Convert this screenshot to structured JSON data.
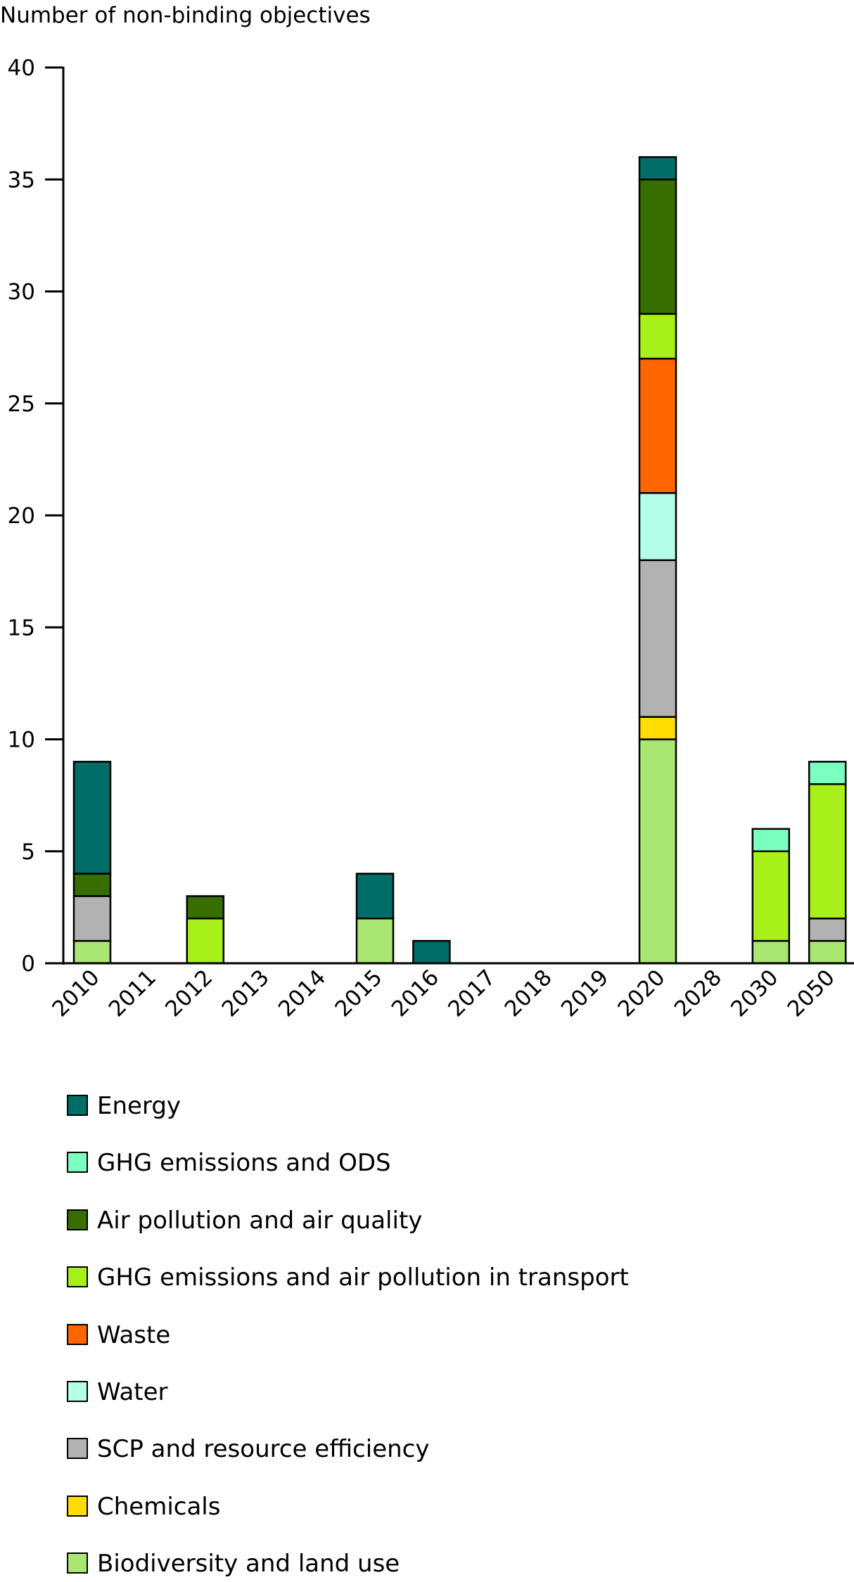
{
  "chart_data": {
    "type": "bar",
    "stacked": true,
    "title": "",
    "xlabel": "",
    "ylabel": "Number of non-binding objectives",
    "ylim": [
      0,
      40
    ],
    "yticks": [
      0,
      5,
      10,
      15,
      20,
      25,
      30,
      35,
      40
    ],
    "grid": false,
    "legend_position": "bottom",
    "categories": [
      "2010",
      "2011",
      "2012",
      "2013",
      "2014",
      "2015",
      "2016",
      "2017",
      "2018",
      "2019",
      "2020",
      "2028",
      "2030",
      "2050"
    ],
    "series": [
      {
        "name": "Biodiversity and land use",
        "color": "#a9e672",
        "values": [
          1,
          0,
          0,
          0,
          0,
          2,
          0,
          0,
          0,
          0,
          10,
          0,
          1,
          1
        ]
      },
      {
        "name": "Chemicals",
        "color": "#ffdd00",
        "values": [
          0,
          0,
          0,
          0,
          0,
          0,
          0,
          0,
          0,
          0,
          1,
          0,
          0,
          0
        ]
      },
      {
        "name": "SCP and resource efficiency",
        "color": "#b2b2b2",
        "values": [
          2,
          0,
          0,
          0,
          0,
          0,
          0,
          0,
          0,
          0,
          7,
          0,
          0,
          1
        ]
      },
      {
        "name": "Water",
        "color": "#b4ffe8",
        "values": [
          0,
          0,
          0,
          0,
          0,
          0,
          0,
          0,
          0,
          0,
          3,
          0,
          0,
          0
        ]
      },
      {
        "name": "Waste",
        "color": "#ff6600",
        "values": [
          0,
          0,
          0,
          0,
          0,
          0,
          0,
          0,
          0,
          0,
          6,
          0,
          0,
          0
        ]
      },
      {
        "name": "GHG emissions and air pollution in transport",
        "color": "#a8f01a",
        "values": [
          0,
          0,
          2,
          0,
          0,
          0,
          0,
          0,
          0,
          0,
          2,
          0,
          4,
          6
        ]
      },
      {
        "name": "Air pollution and air quality",
        "color": "#386e00",
        "values": [
          1,
          0,
          1,
          0,
          0,
          0,
          0,
          0,
          0,
          0,
          6,
          0,
          0,
          0
        ]
      },
      {
        "name": "GHG emissions and ODS",
        "color": "#7bffc0",
        "values": [
          0,
          0,
          0,
          0,
          0,
          0,
          0,
          0,
          0,
          0,
          0,
          0,
          1,
          1
        ]
      },
      {
        "name": "Energy",
        "color": "#006d66",
        "values": [
          5,
          0,
          0,
          0,
          0,
          2,
          1,
          0,
          0,
          0,
          1,
          0,
          0,
          0
        ]
      }
    ],
    "legend": [
      {
        "name": "Energy",
        "color": "#006d66"
      },
      {
        "name": "GHG emissions and ODS",
        "color": "#7bffc0"
      },
      {
        "name": "Air pollution and air quality",
        "color": "#386e00"
      },
      {
        "name": "GHG emissions and air pollution in transport",
        "color": "#a8f01a"
      },
      {
        "name": "Waste",
        "color": "#ff6600"
      },
      {
        "name": "Water",
        "color": "#b4ffe8"
      },
      {
        "name": "SCP and resource efficiency",
        "color": "#b2b2b2"
      },
      {
        "name": "Chemicals",
        "color": "#ffdd00"
      },
      {
        "name": "Biodiversity and land use",
        "color": "#a9e672"
      }
    ]
  }
}
